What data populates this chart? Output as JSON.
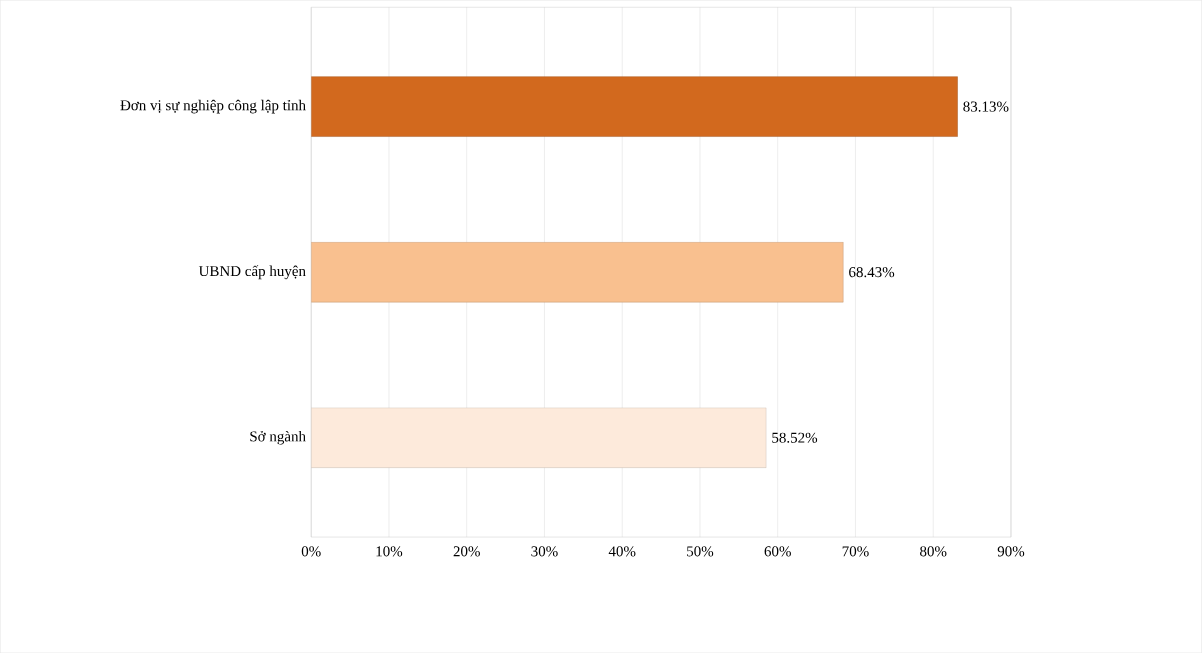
{
  "chart_data": {
    "type": "bar",
    "orientation": "horizontal",
    "categories": [
      "Đơn vị sự nghiệp công lập tỉnh",
      "UBND cấp huyện",
      "Sở ngành"
    ],
    "values": [
      83.13,
      68.43,
      58.52
    ],
    "colors": [
      "#d2691e",
      "#f9c08f",
      "#fdeadb"
    ],
    "value_labels": [
      "83.13%",
      "68.43%",
      "58.52%"
    ],
    "xlim": [
      0,
      90
    ],
    "xticks": [
      {
        "value": 0,
        "label": "0%"
      },
      {
        "value": 10,
        "label": "10%"
      },
      {
        "value": 20,
        "label": "20%"
      },
      {
        "value": 30,
        "label": "30%"
      },
      {
        "value": 40,
        "label": "40%"
      },
      {
        "value": 50,
        "label": "50%"
      },
      {
        "value": 60,
        "label": "60%"
      },
      {
        "value": 70,
        "label": "70%"
      },
      {
        "value": 80,
        "label": "80%"
      },
      {
        "value": 90,
        "label": "90%"
      }
    ],
    "grid": "x"
  }
}
